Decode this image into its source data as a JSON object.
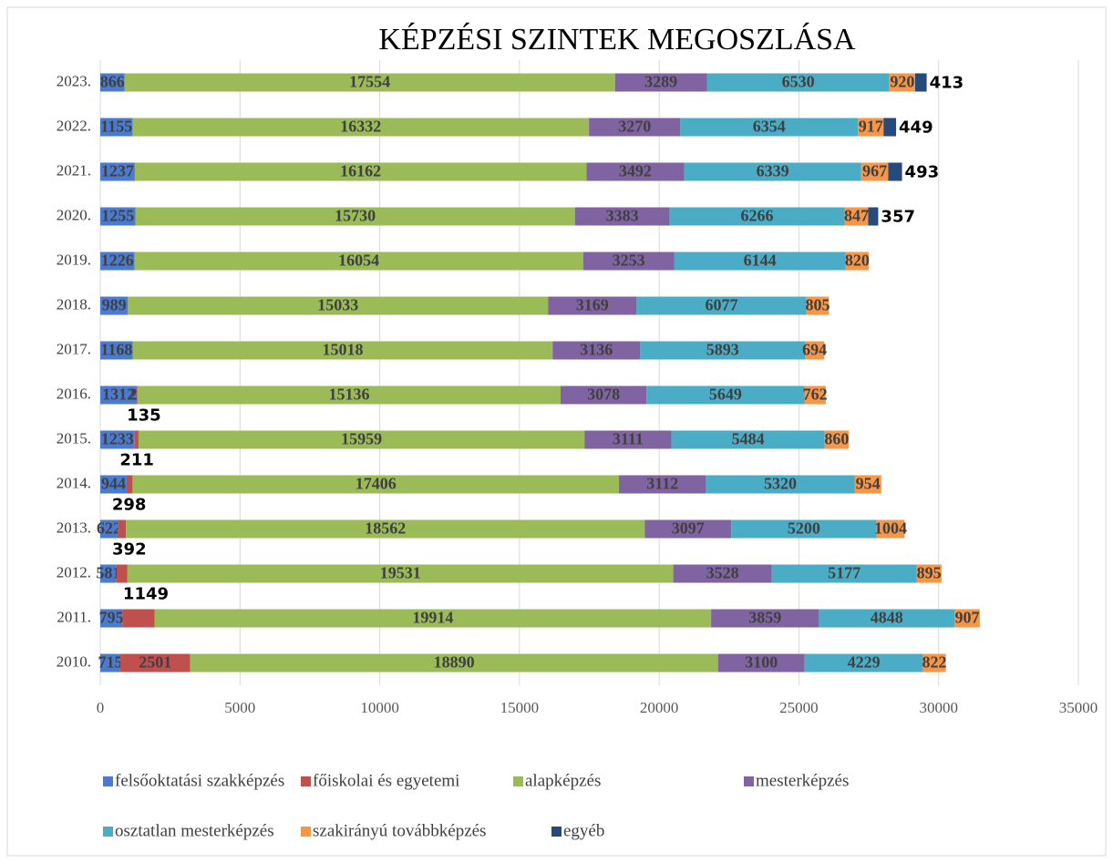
{
  "chart_data": {
    "type": "stacked_bar_horizontal",
    "title": "KÉPZÉSI SZINTEK MEGOSZLÁSA",
    "categories": [
      "2023.",
      "2022.",
      "2021.",
      "2020.",
      "2019.",
      "2018.",
      "2017.",
      "2016.",
      "2015.",
      "2014.",
      "2013.",
      "2012.",
      "2011.",
      "2010."
    ],
    "series": [
      {
        "name": "felsőoktatási szakképzés",
        "color": "#4a7bd0",
        "values": [
          866,
          1155,
          1237,
          1255,
          1226,
          989,
          1168,
          1312,
          1233,
          944,
          622,
          581,
          795,
          715
        ]
      },
      {
        "name": "főiskolai és egyetemi",
        "color": "#c0504d",
        "values": [
          null,
          null,
          null,
          null,
          null,
          null,
          null,
          23,
          135,
          211,
          298,
          392,
          1149,
          2501
        ]
      },
      {
        "name": "alapképzés",
        "color": "#9bbb59",
        "values": [
          17554,
          16332,
          16162,
          15730,
          16054,
          15033,
          15018,
          15136,
          15959,
          17406,
          18562,
          19531,
          19914,
          18890
        ]
      },
      {
        "name": "mesterképzés",
        "color": "#8064a2",
        "values": [
          3289,
          3270,
          3492,
          3383,
          3253,
          3169,
          3136,
          3078,
          3111,
          3112,
          3097,
          3528,
          3859,
          3100
        ]
      },
      {
        "name": "osztatlan mesterképzés",
        "color": "#4bacc6",
        "values": [
          6530,
          6354,
          6339,
          6266,
          6144,
          6077,
          5893,
          5649,
          5484,
          5320,
          5200,
          5177,
          4848,
          4229
        ]
      },
      {
        "name": "szakirányú továbbképzés",
        "color": "#f79646",
        "values": [
          920,
          917,
          967,
          847,
          820,
          805,
          694,
          762,
          860,
          954,
          1004,
          895,
          907,
          822
        ]
      },
      {
        "name": "egyéb",
        "color": "#264a7a",
        "values": [
          413,
          449,
          493,
          357,
          null,
          null,
          null,
          null,
          null,
          null,
          null,
          null,
          null,
          null
        ]
      }
    ],
    "xlim": [
      0,
      35000
    ],
    "xticks": [
      0,
      5000,
      10000,
      15000,
      20000,
      25000,
      30000,
      35000
    ],
    "grid": true,
    "legend": "bottom"
  }
}
